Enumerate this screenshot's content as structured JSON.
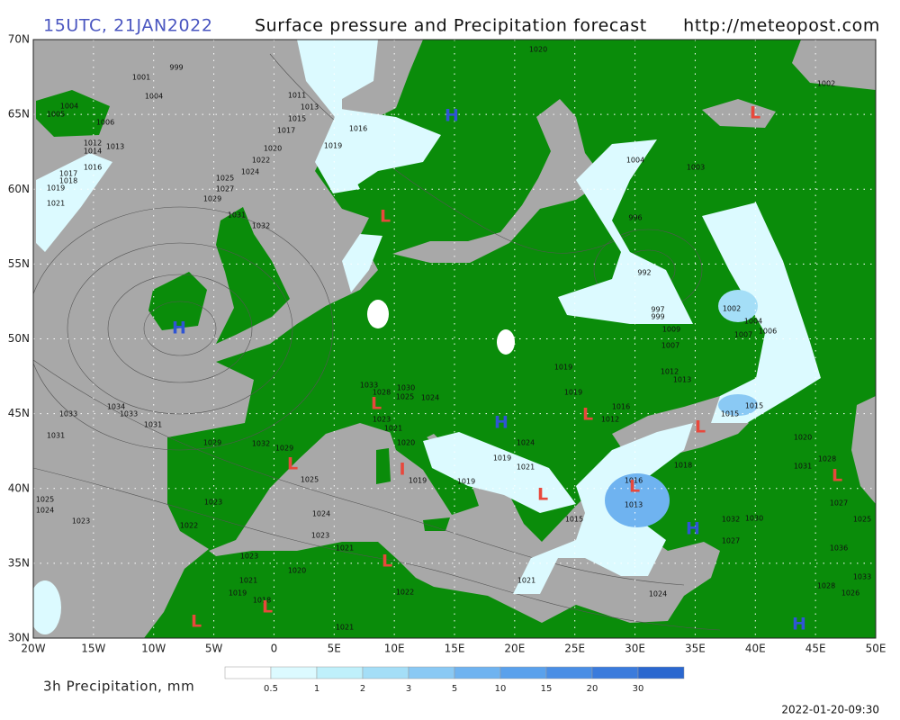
{
  "header": {
    "time": "15UTC, 21JAN2022",
    "title": "Surface pressure and Precipitation forecast",
    "url": "http://meteopost.com",
    "time_color": "#4a56c0"
  },
  "map": {
    "lat_labels": [
      "70N",
      "65N",
      "60N",
      "55N",
      "50N",
      "45N",
      "40N",
      "35N",
      "30N"
    ],
    "lon_labels": [
      "20W",
      "15W",
      "10W",
      "5W",
      "0",
      "5E",
      "10E",
      "15E",
      "20E",
      "25E",
      "30E",
      "35E",
      "40E",
      "45E",
      "50E"
    ],
    "land_color": "#0a8c0a",
    "sea_color": "#a8a8a8",
    "pressure_labels": [
      "999",
      "1001",
      "1004",
      "1004",
      "1005",
      "1006",
      "1011",
      "1013",
      "1015",
      "1017",
      "1019",
      "1016",
      "1012",
      "1014",
      "1013",
      "1016",
      "1017",
      "1018",
      "1019",
      "1021",
      "1020",
      "1022",
      "1024",
      "1025",
      "1027",
      "1029",
      "1031",
      "1032",
      "1020",
      "1002",
      "1003",
      "1004",
      "996",
      "992",
      "997",
      "999",
      "1002",
      "1004",
      "1006",
      "1007",
      "1009",
      "1007",
      "1012",
      "1019",
      "1033",
      "1034",
      "1033",
      "1031",
      "1031",
      "1029",
      "1032",
      "1029",
      "1025",
      "1023",
      "1022",
      "1025",
      "1024",
      "1023",
      "1024",
      "1023",
      "1021",
      "1023",
      "1020",
      "1021",
      "1019",
      "1018",
      "1021",
      "1022",
      "1021",
      "1024",
      "1027",
      "1032",
      "1030",
      "1020",
      "1028",
      "1031",
      "1027",
      "1036",
      "1028",
      "1026",
      "1033",
      "1025",
      "1015",
      "1015",
      "1018",
      "1016",
      "1013",
      "1015",
      "1024",
      "1021",
      "1019",
      "1019",
      "1019",
      "1020",
      "1021",
      "1023",
      "1024",
      "1025",
      "1030",
      "1028",
      "1033",
      "1019",
      "1016",
      "1012",
      "1013"
    ],
    "markers": [
      "H",
      "H",
      "L",
      "L",
      "H",
      "L",
      "L",
      "L",
      "L",
      "I",
      "L",
      "L",
      "H",
      "L",
      "L",
      "L",
      "H",
      "L"
    ],
    "marker_colors": {
      "H": "#2f55d4",
      "L": "#e8483c",
      "I": "#e8483c"
    }
  },
  "legend": {
    "title": "3h Precipitation, mm",
    "labels": [
      "0.5",
      "1",
      "2",
      "3",
      "5",
      "10",
      "15",
      "20",
      "30"
    ],
    "colors": [
      "#ffffff",
      "#dcfaff",
      "#bff0fb",
      "#a4def7",
      "#8ac9f4",
      "#6fb3f0",
      "#5aa1ec",
      "#4a8ee5",
      "#3b7bdc",
      "#2a67cf"
    ]
  },
  "timestamp": "2022-01-20-09:30"
}
